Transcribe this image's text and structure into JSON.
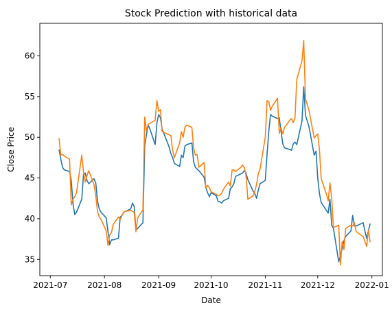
{
  "chart_data": {
    "type": "line",
    "title": "Stock Prediction with historical data",
    "xlabel": "Date",
    "ylabel": "Close Price",
    "xlim": [
      "2021-06-25",
      "2022-01-07"
    ],
    "ylim": [
      33,
      64
    ],
    "x_ticks": [
      {
        "date": "2021-07-01",
        "label": "2021-07"
      },
      {
        "date": "2021-08-01",
        "label": "2021-08"
      },
      {
        "date": "2021-09-01",
        "label": "2021-09"
      },
      {
        "date": "2021-10-01",
        "label": "2021-10"
      },
      {
        "date": "2021-11-01",
        "label": "2021-11"
      },
      {
        "date": "2021-12-01",
        "label": "2021-12"
      },
      {
        "date": "2022-01-01",
        "label": "2022-01"
      }
    ],
    "y_ticks": [
      35,
      40,
      45,
      50,
      55,
      60
    ],
    "grid": false,
    "legend": "none",
    "series": [
      {
        "color": "#1f77b4",
        "x": [
          "2021-07-06",
          "2021-07-07",
          "2021-07-08",
          "2021-07-09",
          "2021-07-12",
          "2021-07-13",
          "2021-07-14",
          "2021-07-15",
          "2021-07-16",
          "2021-07-19",
          "2021-07-20",
          "2021-07-21",
          "2021-07-22",
          "2021-07-23",
          "2021-07-26",
          "2021-07-27",
          "2021-07-28",
          "2021-07-29",
          "2021-07-30",
          "2021-08-02",
          "2021-08-03",
          "2021-08-04",
          "2021-08-05",
          "2021-08-06",
          "2021-08-09",
          "2021-08-10",
          "2021-08-11",
          "2021-08-12",
          "2021-08-13",
          "2021-08-16",
          "2021-08-17",
          "2021-08-18",
          "2021-08-19",
          "2021-08-20",
          "2021-08-23",
          "2021-08-24",
          "2021-08-25",
          "2021-08-26",
          "2021-08-27",
          "2021-08-30",
          "2021-08-31",
          "2021-09-01",
          "2021-09-02",
          "2021-09-03",
          "2021-09-07",
          "2021-09-08",
          "2021-09-09",
          "2021-09-10",
          "2021-09-13",
          "2021-09-14",
          "2021-09-15",
          "2021-09-16",
          "2021-09-17",
          "2021-09-20",
          "2021-09-21",
          "2021-09-22",
          "2021-09-23",
          "2021-09-24",
          "2021-09-27",
          "2021-09-28",
          "2021-09-29",
          "2021-09-30",
          "2021-10-01",
          "2021-10-04",
          "2021-10-05",
          "2021-10-06",
          "2021-10-07",
          "2021-10-08",
          "2021-10-11",
          "2021-10-12",
          "2021-10-13",
          "2021-10-14",
          "2021-10-15",
          "2021-10-18",
          "2021-10-19",
          "2021-10-20",
          "2021-10-21",
          "2021-10-22",
          "2021-10-25",
          "2021-10-26",
          "2021-10-27",
          "2021-10-28",
          "2021-10-29",
          "2021-11-01",
          "2021-11-02",
          "2021-11-03",
          "2021-11-04",
          "2021-11-05",
          "2021-11-08",
          "2021-11-09",
          "2021-11-10",
          "2021-11-11",
          "2021-11-12",
          "2021-11-15",
          "2021-11-16",
          "2021-11-17",
          "2021-11-18",
          "2021-11-19",
          "2021-11-22",
          "2021-11-23",
          "2021-11-24",
          "2021-11-26",
          "2021-11-29",
          "2021-11-30",
          "2021-12-01",
          "2021-12-02",
          "2021-12-03",
          "2021-12-06",
          "2021-12-07",
          "2021-12-08",
          "2021-12-09",
          "2021-12-10",
          "2021-12-13",
          "2021-12-14",
          "2021-12-15",
          "2021-12-16",
          "2021-12-17",
          "2021-12-20",
          "2021-12-21",
          "2021-12-22",
          "2021-12-23",
          "2021-12-27",
          "2021-12-28",
          "2021-12-29",
          "2021-12-30",
          "2021-12-31"
        ],
        "values": [
          48.5,
          47.3,
          46.3,
          46.0,
          45.8,
          44.7,
          41.8,
          40.5,
          40.8,
          42.4,
          45.4,
          45.6,
          44.7,
          44.3,
          44.9,
          44.4,
          42.2,
          41.2,
          40.8,
          40.1,
          38.4,
          36.8,
          37.4,
          37.4,
          37.6,
          40.2,
          40.4,
          40.8,
          40.9,
          41.2,
          41.9,
          41.5,
          38.6,
          38.8,
          39.5,
          49.0,
          50.3,
          51.5,
          51.0,
          49.1,
          51.8,
          52.8,
          52.4,
          51.0,
          48.8,
          48.0,
          47.5,
          46.8,
          46.4,
          47.8,
          47.5,
          48.9,
          49.1,
          49.3,
          47.0,
          46.3,
          46.1,
          45.9,
          45.1,
          43.8,
          43.2,
          42.7,
          43.2,
          42.8,
          42.1,
          42.1,
          41.9,
          42.2,
          42.5,
          43.7,
          43.9,
          44.3,
          45.2,
          45.5,
          45.6,
          45.9,
          45.6,
          44.8,
          43.4,
          43.1,
          42.5,
          43.5,
          44.3,
          44.7,
          47.9,
          50.7,
          52.8,
          52.6,
          52.3,
          52.4,
          50.8,
          49.2,
          48.7,
          48.5,
          48.4,
          49.2,
          49.4,
          49.1,
          52.0,
          56.2,
          52.7,
          51.3,
          47.8,
          48.3,
          45.0,
          43.1,
          42.0,
          41.0,
          40.7,
          42.4,
          39.2,
          38.8,
          34.7,
          35.5,
          36.3,
          37.3,
          37.8,
          38.5,
          40.4,
          39.1,
          39.1,
          39.5,
          38.5,
          37.6,
          38.5,
          39.4
        ]
      },
      {
        "color": "#ff7f0e",
        "x": [
          "2021-07-06",
          "2021-07-07",
          "2021-07-08",
          "2021-07-09",
          "2021-07-12",
          "2021-07-13",
          "2021-07-14",
          "2021-07-15",
          "2021-07-16",
          "2021-07-19",
          "2021-07-20",
          "2021-07-21",
          "2021-07-22",
          "2021-07-23",
          "2021-07-26",
          "2021-07-27",
          "2021-07-28",
          "2021-07-29",
          "2021-07-30",
          "2021-08-02",
          "2021-08-03",
          "2021-08-04",
          "2021-08-05",
          "2021-08-06",
          "2021-08-09",
          "2021-08-10",
          "2021-08-11",
          "2021-08-12",
          "2021-08-13",
          "2021-08-16",
          "2021-08-17",
          "2021-08-18",
          "2021-08-19",
          "2021-08-20",
          "2021-08-23",
          "2021-08-24",
          "2021-08-25",
          "2021-08-26",
          "2021-08-27",
          "2021-08-30",
          "2021-08-31",
          "2021-09-01",
          "2021-09-02",
          "2021-09-03",
          "2021-09-07",
          "2021-09-08",
          "2021-09-09",
          "2021-09-10",
          "2021-09-13",
          "2021-09-14",
          "2021-09-15",
          "2021-09-16",
          "2021-09-17",
          "2021-09-20",
          "2021-09-21",
          "2021-09-22",
          "2021-09-23",
          "2021-09-24",
          "2021-09-27",
          "2021-09-28",
          "2021-09-29",
          "2021-09-30",
          "2021-10-01",
          "2021-10-04",
          "2021-10-05",
          "2021-10-06",
          "2021-10-07",
          "2021-10-08",
          "2021-10-11",
          "2021-10-12",
          "2021-10-13",
          "2021-10-14",
          "2021-10-15",
          "2021-10-18",
          "2021-10-19",
          "2021-10-20",
          "2021-10-21",
          "2021-10-22",
          "2021-10-25",
          "2021-10-26",
          "2021-10-27",
          "2021-10-28",
          "2021-10-29",
          "2021-11-01",
          "2021-11-02",
          "2021-11-03",
          "2021-11-04",
          "2021-11-05",
          "2021-11-08",
          "2021-11-09",
          "2021-11-10",
          "2021-11-11",
          "2021-11-12",
          "2021-11-15",
          "2021-11-16",
          "2021-11-17",
          "2021-11-18",
          "2021-11-19",
          "2021-11-22",
          "2021-11-23",
          "2021-11-24",
          "2021-11-26",
          "2021-11-29",
          "2021-11-30",
          "2021-12-01",
          "2021-12-02",
          "2021-12-03",
          "2021-12-06",
          "2021-12-07",
          "2021-12-08",
          "2021-12-09",
          "2021-12-10",
          "2021-12-13",
          "2021-12-14",
          "2021-12-15",
          "2021-12-16",
          "2021-12-17",
          "2021-12-20",
          "2021-12-21",
          "2021-12-22",
          "2021-12-23",
          "2021-12-27",
          "2021-12-28",
          "2021-12-29",
          "2021-12-30",
          "2021-12-31"
        ],
        "values": [
          49.9,
          47.8,
          47.9,
          47.7,
          47.3,
          41.7,
          42.4,
          42.7,
          43.2,
          47.8,
          45.8,
          44.5,
          45.3,
          45.9,
          44.2,
          42.8,
          40.9,
          40.2,
          39.9,
          38.5,
          36.7,
          38.0,
          38.3,
          39.3,
          40.2,
          39.9,
          40.4,
          40.8,
          40.9,
          41.0,
          40.9,
          40.8,
          38.4,
          40.1,
          41.1,
          52.5,
          50.8,
          51.6,
          51.7,
          52.1,
          54.5,
          53.2,
          53.4,
          50.7,
          50.3,
          50.2,
          48.4,
          47.5,
          49.3,
          50.7,
          50.0,
          51.2,
          51.5,
          51.2,
          48.7,
          47.8,
          47.9,
          46.3,
          46.9,
          43.7,
          44.1,
          43.8,
          43.3,
          43.0,
          42.8,
          42.9,
          43.1,
          43.6,
          44.5,
          44.0,
          46.0,
          46.0,
          45.8,
          46.3,
          46.6,
          46.3,
          45.3,
          42.4,
          42.8,
          43.3,
          44.2,
          45.5,
          46.1,
          50.0,
          54.5,
          54.4,
          53.3,
          53.8,
          54.8,
          50.5,
          51.2,
          50.4,
          51.2,
          52.1,
          52.3,
          51.8,
          52.4,
          57.1,
          59.4,
          61.9,
          54.7,
          53.3,
          49.9,
          50.2,
          50.4,
          48.5,
          44.9,
          43.0,
          42.2,
          44.4,
          42.5,
          38.9,
          39.2,
          34.3,
          37.2,
          36.2,
          38.8,
          39.2,
          39.1,
          39.5,
          38.4,
          37.8,
          37.2,
          36.6,
          38.6,
          37.1
        ]
      }
    ]
  }
}
